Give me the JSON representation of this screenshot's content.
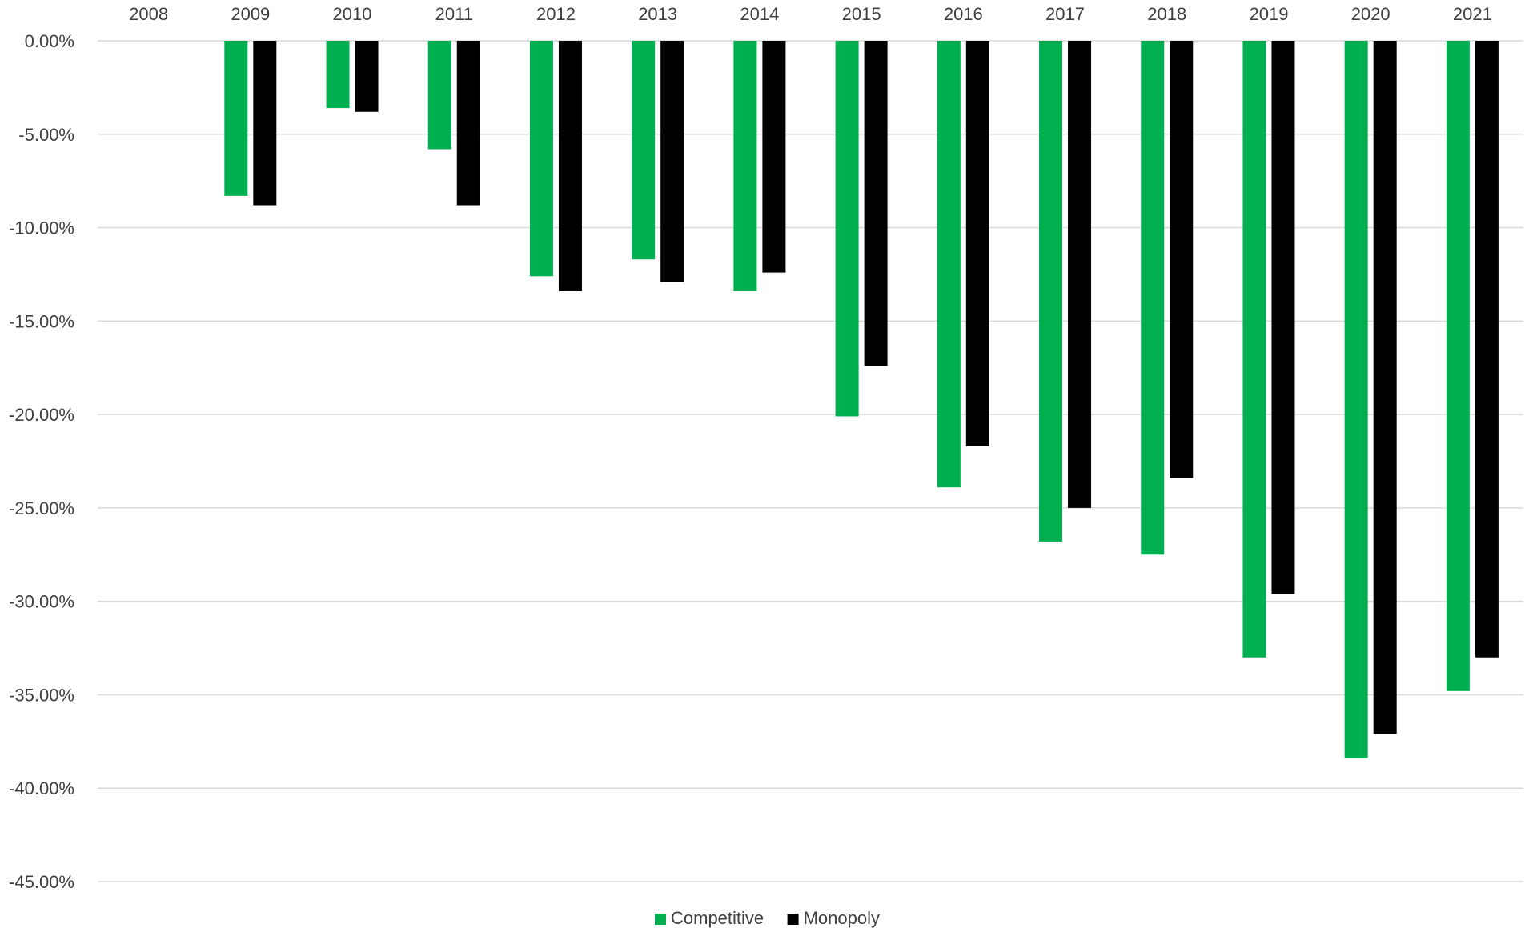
{
  "chart_data": {
    "type": "bar",
    "title": "",
    "xlabel": "",
    "ylabel": "",
    "categories": [
      "2008",
      "2009",
      "2010",
      "2011",
      "2012",
      "2013",
      "2014",
      "2015",
      "2016",
      "2017",
      "2018",
      "2019",
      "2020",
      "2021"
    ],
    "series": [
      {
        "name": "Competitive",
        "color": "#00b050",
        "values": [
          0.0,
          -8.3,
          -3.6,
          -5.8,
          -12.6,
          -11.7,
          -13.4,
          -20.1,
          -23.9,
          -26.8,
          -27.5,
          -33.0,
          -38.4,
          -34.8
        ]
      },
      {
        "name": "Monopoly",
        "color": "#000000",
        "values": [
          0.0,
          -8.8,
          -3.8,
          -8.8,
          -13.4,
          -12.9,
          -12.4,
          -17.4,
          -21.7,
          -25.0,
          -23.4,
          -29.6,
          -37.1,
          -33.0
        ]
      }
    ],
    "ylim": [
      -45,
      0
    ],
    "yticks": [
      0,
      -5,
      -10,
      -15,
      -20,
      -25,
      -30,
      -35,
      -40,
      -45
    ],
    "ytick_labels": [
      "0.00%",
      "-5.00%",
      "-10.00%",
      "-15.00%",
      "-20.00%",
      "-25.00%",
      "-30.00%",
      "-35.00%",
      "-40.00%",
      "-45.00%"
    ],
    "x_axis_position": "top",
    "grid": true,
    "legend_position": "bottom-center"
  }
}
